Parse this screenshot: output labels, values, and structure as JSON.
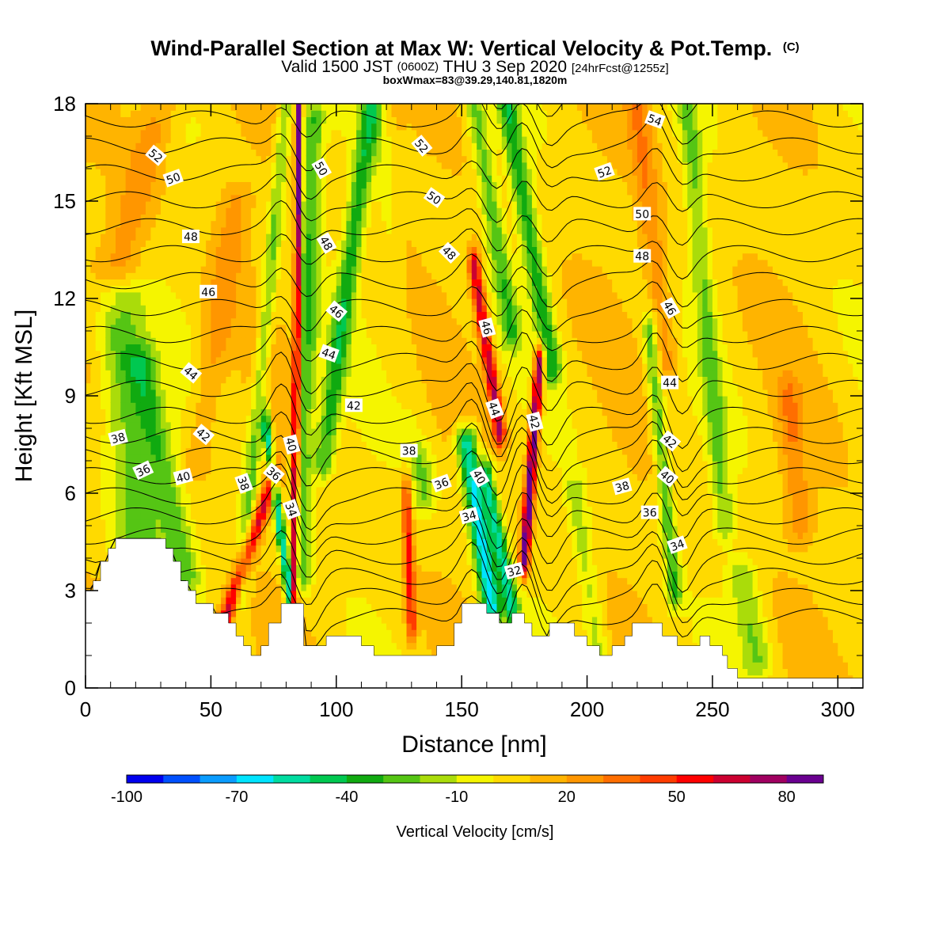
{
  "chart_data": {
    "type": "heatmap",
    "title": "Wind-Parallel Section at Max W: Vertical Velocity & Pot.Temp.",
    "title_mark": "(C)",
    "subtitle": {
      "prefix": "Valid 1500 JST",
      "utc": "(0600Z)",
      "date": "THU 3 Sep 2020",
      "forecast": "[24hrFcst@1255z]"
    },
    "info_line": "boxWmax=83@39.29,140.81,1820m",
    "xlabel": "Distance [nm]",
    "ylabel": "Height [Kft MSL]",
    "xlim": [
      0,
      310
    ],
    "ylim": [
      0,
      18
    ],
    "x_ticks": [
      "0",
      "50",
      "100",
      "150",
      "200",
      "250",
      "300"
    ],
    "y_ticks": [
      "0",
      "3",
      "6",
      "9",
      "12",
      "15",
      "18"
    ],
    "colorbar": {
      "label": "Vertical Velocity [cm/s]",
      "range": [
        -100,
        90
      ],
      "step": 10,
      "tick_labels": [
        "-100",
        "-70",
        "-40",
        "-10",
        "20",
        "50",
        "80"
      ],
      "colors": [
        "#0000ee",
        "#0050ff",
        "#0a9cff",
        "#00e4ff",
        "#00dca0",
        "#00c850",
        "#10aa10",
        "#55c514",
        "#aadc0a",
        "#f5f500",
        "#ffda00",
        "#ffb400",
        "#ff9600",
        "#ff6e00",
        "#ff3c00",
        "#ff0000",
        "#cc0030",
        "#a00060",
        "#6a0090"
      ]
    },
    "terrain_kft": [
      [
        0,
        3
      ],
      [
        3,
        3
      ],
      [
        3,
        3.3
      ],
      [
        6,
        3.3
      ],
      [
        6,
        3.9
      ],
      [
        9,
        3.9
      ],
      [
        9,
        4.3
      ],
      [
        12,
        4.3
      ],
      [
        12,
        4.6
      ],
      [
        32,
        4.6
      ],
      [
        32,
        4.3
      ],
      [
        35,
        4.3
      ],
      [
        35,
        3.9
      ],
      [
        38,
        3.9
      ],
      [
        38,
        3.3
      ],
      [
        41,
        3.3
      ],
      [
        41,
        3
      ],
      [
        44,
        3
      ],
      [
        44,
        2.6
      ],
      [
        51,
        2.6
      ],
      [
        51,
        2.3
      ],
      [
        57,
        2.3
      ],
      [
        57,
        2
      ],
      [
        60,
        2
      ],
      [
        60,
        1.6
      ],
      [
        63,
        1.6
      ],
      [
        63,
        1.3
      ],
      [
        66,
        1.3
      ],
      [
        66,
        1
      ],
      [
        70,
        1
      ],
      [
        70,
        1.3
      ],
      [
        73,
        1.3
      ],
      [
        73,
        2
      ],
      [
        78,
        2
      ],
      [
        78,
        2.6
      ],
      [
        87,
        2.6
      ],
      [
        87,
        1.3
      ],
      [
        96,
        1.3
      ],
      [
        96,
        1.6
      ],
      [
        110,
        1.6
      ],
      [
        110,
        1.3
      ],
      [
        115,
        1.3
      ],
      [
        115,
        1
      ],
      [
        140,
        1
      ],
      [
        140,
        1.3
      ],
      [
        147,
        1.3
      ],
      [
        147,
        2
      ],
      [
        150,
        2
      ],
      [
        150,
        2.6
      ],
      [
        160,
        2.6
      ],
      [
        160,
        2.3
      ],
      [
        165,
        2.3
      ],
      [
        165,
        2
      ],
      [
        170,
        2
      ],
      [
        170,
        2.3
      ],
      [
        175,
        2.3
      ],
      [
        175,
        2
      ],
      [
        178,
        2
      ],
      [
        178,
        1.6
      ],
      [
        185,
        1.6
      ],
      [
        185,
        2
      ],
      [
        195,
        2
      ],
      [
        195,
        1.6
      ],
      [
        200,
        1.6
      ],
      [
        200,
        1.3
      ],
      [
        205,
        1.3
      ],
      [
        205,
        1
      ],
      [
        210,
        1
      ],
      [
        210,
        1.3
      ],
      [
        215,
        1.3
      ],
      [
        215,
        1.6
      ],
      [
        218,
        1.6
      ],
      [
        218,
        2
      ],
      [
        230,
        2
      ],
      [
        230,
        1.6
      ],
      [
        236,
        1.6
      ],
      [
        236,
        1.3
      ],
      [
        245,
        1.3
      ],
      [
        245,
        1.6
      ],
      [
        249,
        1.6
      ],
      [
        249,
        1.3
      ],
      [
        254,
        1.3
      ],
      [
        254,
        1
      ],
      [
        256,
        1
      ],
      [
        256,
        0.6
      ],
      [
        260,
        0.6
      ],
      [
        260,
        0.3
      ],
      [
        310,
        0.3
      ],
      [
        310,
        0
      ]
    ],
    "ridges": [
      {
        "x0": 83,
        "x1": 85,
        "y0": 0,
        "y1": 18,
        "w": 1.8,
        "amp": 90,
        "sx": 1.2
      },
      {
        "x0": 86,
        "x1": 91,
        "y0": 3.5,
        "y1": 17.5,
        "w": 1.8,
        "amp": -35,
        "sx": 4
      },
      {
        "x0": 95,
        "x1": 114,
        "y0": 7,
        "y1": 18,
        "w": 1.3,
        "amp": -40,
        "sx": 4
      },
      {
        "x0": 62,
        "x1": 80,
        "y0": 3,
        "y1": 18,
        "w": 1.0,
        "amp": -28,
        "sx": 3
      },
      {
        "x0": 55,
        "x1": 75,
        "y0": 2,
        "y1": 6.5,
        "w": 2.0,
        "amp": 60,
        "sx": 3
      },
      {
        "x0": 82,
        "x1": 72,
        "y0": 2.5,
        "y1": 8,
        "w": 2.0,
        "amp": -65,
        "sx": 1.8
      },
      {
        "x0": 22,
        "x1": 12,
        "y0": 4,
        "y1": 12,
        "w": 1.0,
        "amp": -35,
        "sx": 10
      },
      {
        "x0": 40,
        "x1": 22,
        "y0": 3.5,
        "y1": 10,
        "w": 1.0,
        "amp": -30,
        "sx": 6
      },
      {
        "x0": 162,
        "x1": 152,
        "y0": 2.5,
        "y1": 7.5,
        "w": 2.5,
        "amp": -70,
        "sx": 4
      },
      {
        "x0": 170,
        "x1": 160,
        "y0": 2.5,
        "y1": 6.5,
        "w": 1.5,
        "amp": -55,
        "sx": 3
      },
      {
        "x0": 165,
        "x1": 155,
        "y0": 8,
        "y1": 13,
        "w": 2.0,
        "amp": 65,
        "sx": 2.5
      },
      {
        "x0": 175,
        "x1": 181,
        "y0": 4,
        "y1": 10,
        "w": 1.5,
        "amp": 85,
        "sx": 2
      },
      {
        "x0": 186,
        "x1": 168,
        "y0": 10,
        "y1": 18,
        "w": 1.2,
        "amp": -40,
        "sx": 4
      },
      {
        "x0": 170,
        "x1": 155,
        "y0": 11,
        "y1": 18,
        "w": 1.0,
        "amp": -30,
        "sx": 4
      },
      {
        "x0": 135,
        "x1": 118,
        "y0": 6,
        "y1": 18,
        "w": 1.0,
        "amp": -25,
        "sx": 5
      },
      {
        "x0": 132,
        "x1": 120,
        "y0": 8,
        "y1": 18,
        "w": 1.0,
        "amp": 20,
        "sx": 5
      },
      {
        "x0": 130,
        "x1": 128,
        "y0": 2,
        "y1": 6,
        "w": 1.5,
        "amp": 45,
        "sx": 2
      },
      {
        "x0": 235,
        "x1": 225,
        "y0": 3,
        "y1": 11,
        "w": 1.2,
        "amp": -35,
        "sx": 3
      },
      {
        "x0": 255,
        "x1": 240,
        "y0": 5,
        "y1": 18,
        "w": 1.0,
        "amp": -25,
        "sx": 4
      },
      {
        "x0": 232,
        "x1": 220,
        "y0": 10,
        "y1": 18,
        "w": 1.0,
        "amp": 22,
        "sx": 5
      },
      {
        "x0": 268,
        "x1": 262,
        "y0": 1,
        "y1": 3.5,
        "w": 1.5,
        "amp": -25,
        "sx": 6
      },
      {
        "x0": 205,
        "x1": 195,
        "y0": 1,
        "y1": 6,
        "w": 1.5,
        "amp": -20,
        "sx": 4
      },
      {
        "x0": 285,
        "x1": 280,
        "y0": 5,
        "y1": 9,
        "w": 1.5,
        "amp": 20,
        "sx": 5
      },
      {
        "x0": 10,
        "x1": 30,
        "y0": 12,
        "y1": 18,
        "w": 1.0,
        "amp": 20,
        "sx": 8
      },
      {
        "x0": 45,
        "x1": 60,
        "y0": 7,
        "y1": 15,
        "w": 1.0,
        "amp": 18,
        "sx": 6
      }
    ],
    "isentropes": {
      "levels": [
        32,
        34,
        36,
        38,
        40,
        42,
        44,
        46,
        48,
        50,
        52,
        54
      ],
      "labels": [
        {
          "text": "52",
          "x": 28,
          "y": 16.4,
          "rot": -40
        },
        {
          "text": "50",
          "x": 35,
          "y": 15.7,
          "rot": 20
        },
        {
          "text": "48",
          "x": 42,
          "y": 13.9,
          "rot": 0
        },
        {
          "text": "46",
          "x": 49,
          "y": 12.2,
          "rot": 0
        },
        {
          "text": "44",
          "x": 42,
          "y": 9.7,
          "rot": -40
        },
        {
          "text": "42",
          "x": 47,
          "y": 7.8,
          "rot": -40
        },
        {
          "text": "40",
          "x": 39,
          "y": 6.5,
          "rot": 15
        },
        {
          "text": "38",
          "x": 13,
          "y": 7.7,
          "rot": 15
        },
        {
          "text": "36",
          "x": 23,
          "y": 6.7,
          "rot": 25
        },
        {
          "text": "38",
          "x": 63,
          "y": 6.3,
          "rot": -70
        },
        {
          "text": "36",
          "x": 75,
          "y": 6.6,
          "rot": -40
        },
        {
          "text": "40",
          "x": 82,
          "y": 7.5,
          "rot": -75
        },
        {
          "text": "34",
          "x": 82,
          "y": 5.5,
          "rot": -70
        },
        {
          "text": "50",
          "x": 94,
          "y": 16.0,
          "rot": -60
        },
        {
          "text": "48",
          "x": 96,
          "y": 13.7,
          "rot": -60
        },
        {
          "text": "46",
          "x": 100,
          "y": 11.6,
          "rot": -40
        },
        {
          "text": "44",
          "x": 97,
          "y": 10.3,
          "rot": -20
        },
        {
          "text": "42",
          "x": 107,
          "y": 8.7,
          "rot": 0
        },
        {
          "text": "38",
          "x": 129,
          "y": 7.3,
          "rot": 0
        },
        {
          "text": "36",
          "x": 142,
          "y": 6.3,
          "rot": 20
        },
        {
          "text": "34",
          "x": 153,
          "y": 5.3,
          "rot": 15
        },
        {
          "text": "32",
          "x": 171,
          "y": 3.6,
          "rot": 15
        },
        {
          "text": "40",
          "x": 157,
          "y": 6.5,
          "rot": -60
        },
        {
          "text": "44",
          "x": 163,
          "y": 8.6,
          "rot": -70
        },
        {
          "text": "46",
          "x": 160,
          "y": 11.1,
          "rot": -75
        },
        {
          "text": "42",
          "x": 179,
          "y": 8.2,
          "rot": -75
        },
        {
          "text": "48",
          "x": 145,
          "y": 13.4,
          "rot": -45
        },
        {
          "text": "50",
          "x": 139,
          "y": 15.1,
          "rot": -35
        },
        {
          "text": "52",
          "x": 134,
          "y": 16.7,
          "rot": -50
        },
        {
          "text": "54",
          "x": 227,
          "y": 17.5,
          "rot": -20
        },
        {
          "text": "52",
          "x": 207,
          "y": 15.9,
          "rot": 20
        },
        {
          "text": "50",
          "x": 222,
          "y": 14.6,
          "rot": 0
        },
        {
          "text": "48",
          "x": 222,
          "y": 13.3,
          "rot": 0
        },
        {
          "text": "46",
          "x": 233,
          "y": 11.7,
          "rot": -60
        },
        {
          "text": "44",
          "x": 233,
          "y": 9.4,
          "rot": 0
        },
        {
          "text": "42",
          "x": 233,
          "y": 7.6,
          "rot": -40
        },
        {
          "text": "40",
          "x": 232,
          "y": 6.5,
          "rot": -40
        },
        {
          "text": "38",
          "x": 214,
          "y": 6.2,
          "rot": 15
        },
        {
          "text": "36",
          "x": 225,
          "y": 5.4,
          "rot": 0
        },
        {
          "text": "34",
          "x": 236,
          "y": 4.4,
          "rot": 20
        }
      ]
    }
  }
}
